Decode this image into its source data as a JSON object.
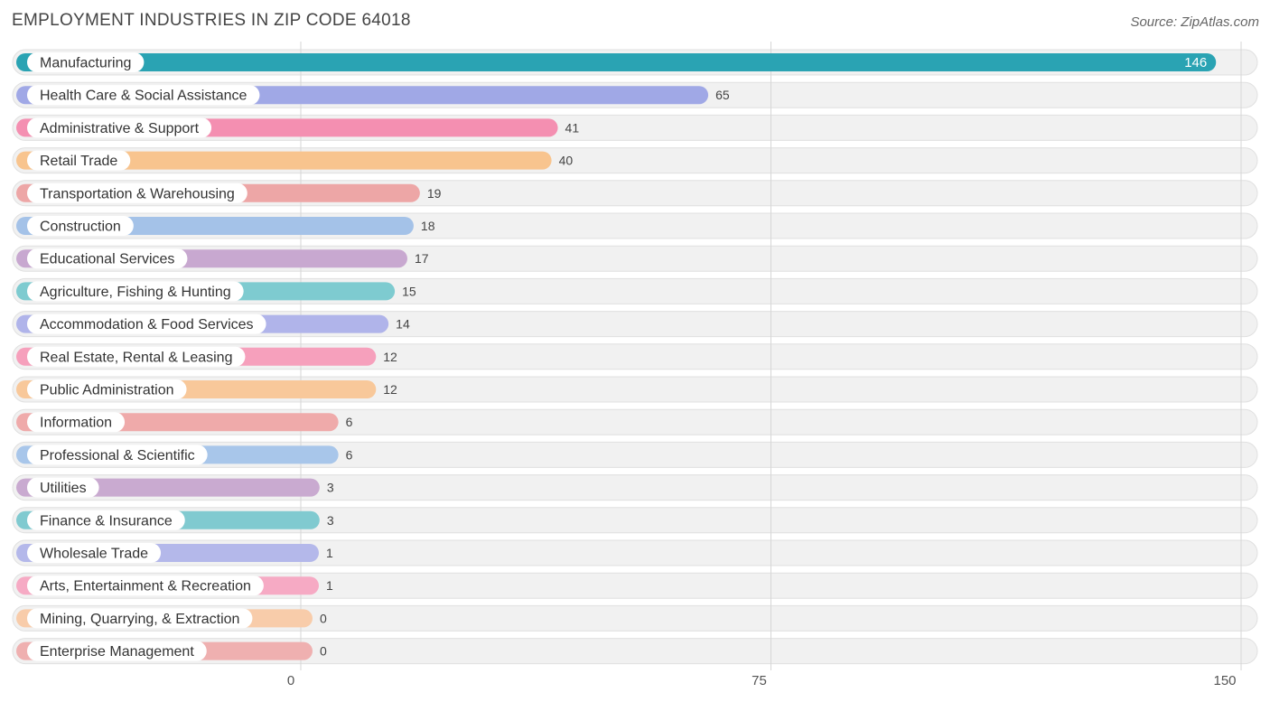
{
  "header": {
    "title": "EMPLOYMENT INDUSTRIES IN ZIP CODE 64018",
    "source": "Source: ZipAtlas.com"
  },
  "chart_data": {
    "type": "bar",
    "orientation": "horizontal",
    "title": "EMPLOYMENT INDUSTRIES IN ZIP CODE 64018",
    "xlim": [
      0,
      150
    ],
    "ticks": [
      0,
      75,
      150
    ],
    "grid": true,
    "categories": [
      "Manufacturing",
      "Health Care & Social Assistance",
      "Administrative & Support",
      "Retail Trade",
      "Transportation & Warehousing",
      "Construction",
      "Educational Services",
      "Agriculture, Fishing & Hunting",
      "Accommodation & Food Services",
      "Real Estate, Rental & Leasing",
      "Public Administration",
      "Information",
      "Professional & Scientific",
      "Utilities",
      "Finance & Insurance",
      "Wholesale Trade",
      "Arts, Entertainment & Recreation",
      "Mining, Quarrying, & Extraction",
      "Enterprise Management"
    ],
    "values": [
      146,
      65,
      41,
      40,
      19,
      18,
      17,
      15,
      14,
      12,
      12,
      6,
      6,
      3,
      3,
      1,
      1,
      0,
      0
    ],
    "colors": [
      "#2aa3b3",
      "#a0a8e6",
      "#f48fb1",
      "#f8c48e",
      "#eda6a6",
      "#a4c2e8",
      "#c8a8d0",
      "#7ecbd0",
      "#b0b4ea",
      "#f6a0bc",
      "#f8c89a",
      "#efaaaa",
      "#a8c6ea",
      "#c9aad0",
      "#80cad0",
      "#b4b8ea",
      "#f6aac4",
      "#f8ccaa",
      "#efb0b0"
    ]
  }
}
